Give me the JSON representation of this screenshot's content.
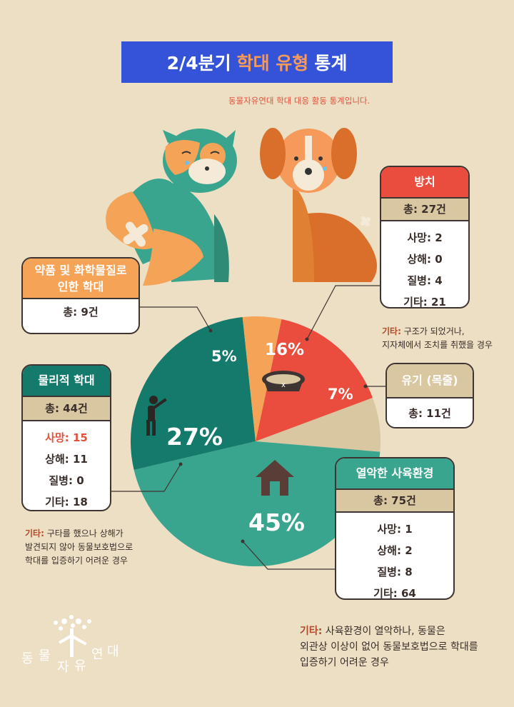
{
  "title": {
    "pre": "2/4분기",
    "highlight": "학대 유형",
    "post": "통계"
  },
  "subtitle": "동물자유연대 학대 대응 활동 통계입니다.",
  "colors": {
    "neglect": "#ea4c3d",
    "abandon": "#d9c7a1",
    "poor_env": "#3aa58e",
    "physical": "#137a6c",
    "chemical": "#f5a357",
    "background": "#ecdfc4",
    "title_bg": "#3553d8"
  },
  "chart_data": {
    "type": "pie",
    "title": "2/4분기 학대 유형 통계",
    "slices": [
      {
        "label": "방치",
        "percent": 16,
        "total": 27,
        "color": "#ea4c3d"
      },
      {
        "label": "유기 (목줄)",
        "percent": 7,
        "total": 11,
        "color": "#d9c7a1"
      },
      {
        "label": "열악한 사육환경",
        "percent": 45,
        "total": 75,
        "color": "#3aa58e"
      },
      {
        "label": "물리적 학대",
        "percent": 27,
        "total": 44,
        "color": "#137a6c"
      },
      {
        "label": "약품 및 화학물질로 인한 학대",
        "percent": 5,
        "total": 9,
        "color": "#f5a357"
      }
    ],
    "pct_labels": {
      "neglect": "16%",
      "abandon": "7%",
      "poor_env": "45%",
      "physical": "27%",
      "chemical": "5%"
    }
  },
  "cards": {
    "neglect": {
      "title": "방치",
      "total_label": "총",
      "total_value": "27건",
      "rows": [
        {
          "label": "사망",
          "value": "2"
        },
        {
          "label": "상해",
          "value": "0"
        },
        {
          "label": "질병",
          "value": "4"
        },
        {
          "label": "기타",
          "value": "21"
        }
      ]
    },
    "chemical": {
      "title_line1": "약품 및 화학물질로",
      "title_line2": "인한 학대",
      "total_label": "총",
      "total_value": "9건"
    },
    "abandon": {
      "title": "유기 (목줄)",
      "total_label": "총",
      "total_value": "11건"
    },
    "physical": {
      "title": "물리적 학대",
      "total_label": "총",
      "total_value": "44건",
      "rows": [
        {
          "label": "사망",
          "value": "15"
        },
        {
          "label": "상해",
          "value": "11"
        },
        {
          "label": "질병",
          "value": "0"
        },
        {
          "label": "기타",
          "value": "18"
        }
      ]
    },
    "poor_env": {
      "title": "열악한 사육환경",
      "total_label": "총",
      "total_value": "75건",
      "rows": [
        {
          "label": "사망",
          "value": "1"
        },
        {
          "label": "상해",
          "value": "2"
        },
        {
          "label": "질병",
          "value": "8"
        },
        {
          "label": "기타",
          "value": "64"
        }
      ]
    }
  },
  "notes": {
    "neglect": {
      "key": "기타:",
      "line1": " 구조가 되었거나,",
      "line2": "지자체에서 조치를 취했을 경우"
    },
    "physical": {
      "key": "기타:",
      "line1": " 구타를 했으나 상해가",
      "line2": "발견되지 않아 동물보호법으로",
      "line3": "학대를 입증하기 어려운 경우"
    },
    "poor_env": {
      "key": "기타:",
      "line1": " 사육환경이 열악하나, 동물은",
      "line2": "외관상 이상이 없어 동물보호법으로 학대를",
      "line3": "입증하기 어려운 경우"
    }
  },
  "logo": {
    "chars": [
      "동",
      "물",
      "자",
      "유",
      "연",
      "대"
    ]
  }
}
